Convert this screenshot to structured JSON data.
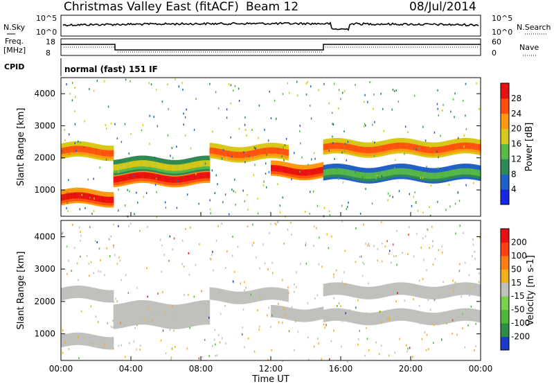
{
  "header": {
    "title": "Christmas Valley East (fitACF)",
    "beam": "Beam 12",
    "date": "08/Jul/2014"
  },
  "strip": {
    "nsky_label": "N.Sky",
    "nsearch_label": "N.Search",
    "freq_label_line1": "Freq.",
    "freq_label_line2": "[MHz]",
    "nave_label": "Nave",
    "cpid_label": "CPID",
    "cpid_value": "normal (fast) 151 IF",
    "nsky_ticks": [
      "10^5",
      "10^0"
    ],
    "nsearch_ticks": [
      "10^5",
      "10^0"
    ],
    "freq_ticks": [
      "18",
      "8"
    ],
    "nave_ticks": [
      "60",
      "0"
    ]
  },
  "chart_data": [
    {
      "type": "heatmap",
      "name": "power",
      "ylabel": "Slant Range [km]",
      "xlabel": "",
      "yticks": [
        "1000",
        "2000",
        "3000",
        "4000"
      ],
      "ylim": [
        180,
        4500
      ],
      "colorbar": {
        "label": "Power [dB]",
        "ticks": [
          "4",
          "8",
          "12",
          "16",
          "20",
          "24",
          "28"
        ],
        "colors": [
          "#1428e6",
          "#2060c8",
          "#2e8a52",
          "#58b848",
          "#d8c818",
          "#ff9a10",
          "#ff5010",
          "#e81010"
        ]
      },
      "bands": [
        {
          "t0": 0.0,
          "t1": 3.0,
          "r": 2200,
          "level": 6
        },
        {
          "t0": 0.0,
          "t1": 3.0,
          "r": 750,
          "level": 7
        },
        {
          "t0": 3.0,
          "t1": 8.5,
          "r": 1380,
          "level": 7
        },
        {
          "t0": 3.0,
          "t1": 8.5,
          "r": 1750,
          "level": 4
        },
        {
          "t0": 8.5,
          "t1": 13.0,
          "r": 2150,
          "level": 6
        },
        {
          "t0": 12.0,
          "t1": 15.0,
          "r": 1600,
          "level": 7
        },
        {
          "t0": 15.0,
          "t1": 24.0,
          "r": 2300,
          "level": 6
        },
        {
          "t0": 15.0,
          "t1": 24.0,
          "r": 1500,
          "level": 3
        }
      ]
    },
    {
      "type": "heatmap",
      "name": "velocity",
      "ylabel": "Slant Range [km]",
      "xlabel": "Time UT",
      "xticks": [
        "00:00",
        "04:00",
        "08:00",
        "12:00",
        "16:00",
        "20:00",
        "00:00"
      ],
      "yticks": [
        "1000",
        "2000",
        "3000",
        "4000"
      ],
      "ylim": [
        180,
        4500
      ],
      "colorbar": {
        "label": "Velocity [m s-1]",
        "ticks": [
          "200",
          "100",
          "50",
          "15",
          "-15",
          "-50",
          "-100",
          "-200"
        ],
        "colors": [
          "#1c3cc8",
          "#2c8c48",
          "#50b838",
          "#7ad050",
          "#c0c0bc",
          "#f0b020",
          "#ff8010",
          "#ff4010",
          "#e81010"
        ]
      }
    }
  ]
}
